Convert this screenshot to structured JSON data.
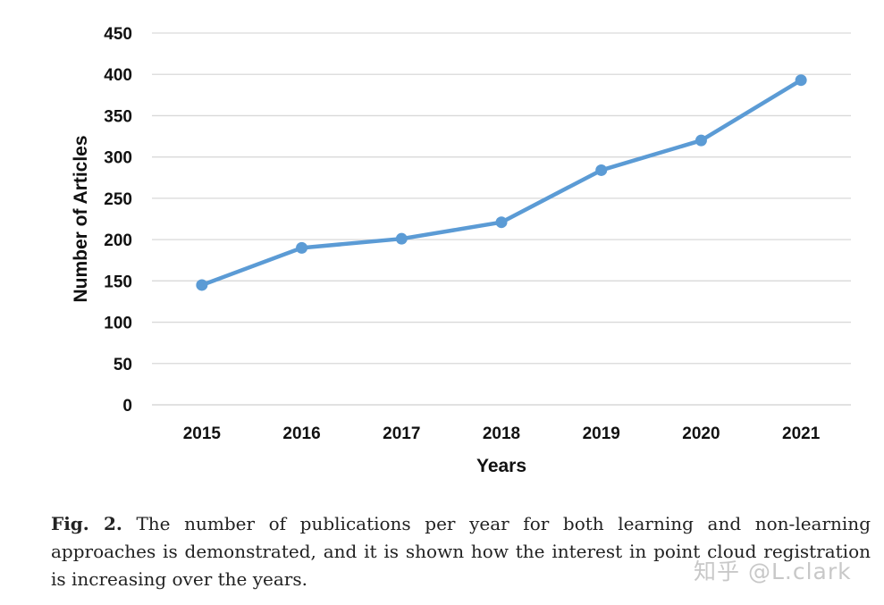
{
  "chart_data": {
    "type": "line",
    "title": "",
    "xlabel": "Years",
    "ylabel": "Number of Articles",
    "categories": [
      "2015",
      "2016",
      "2017",
      "2018",
      "2019",
      "2020",
      "2021"
    ],
    "series": [
      {
        "values": [
          145,
          190,
          201,
          221,
          284,
          320,
          393
        ]
      }
    ],
    "ylim": [
      0,
      450
    ],
    "yticks": [
      "0",
      "50",
      "100",
      "150",
      "200",
      "250",
      "300",
      "350",
      "400",
      "450"
    ],
    "grid": true,
    "legend": "none",
    "colors": {
      "line": "#5b9bd5",
      "grid": "#d9d9d9"
    }
  },
  "caption": {
    "label": "Fig. 2.",
    "text": "The number of publications per year for both learning and non-learning approaches is demonstrated, and it is shown how the interest in point cloud registration is increasing over the years."
  },
  "watermark": "知乎 @L.clark"
}
